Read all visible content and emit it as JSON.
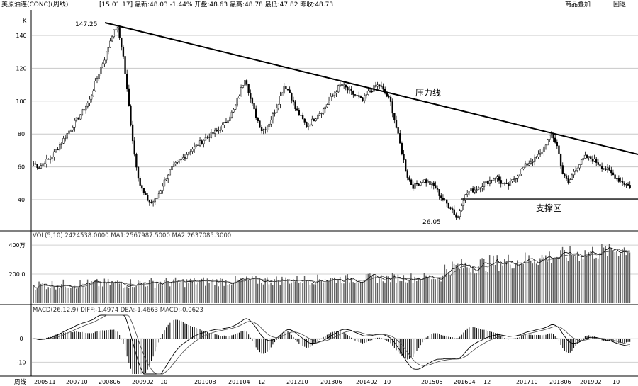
{
  "header": {
    "title": "美原油连(CONC)(周线)",
    "quote": "[15.01.17] 最新:48.03 -1.44% 开盘:48.63 最高:48.78 最低:47.82 昨收:48.73",
    "product_link": "商品叠加",
    "back_link": "回退"
  },
  "chart_data": [
    {
      "type": "candlestick",
      "name": "price",
      "yunit": "K",
      "ylim": [
        40,
        145
      ],
      "yticks": [
        40,
        60,
        80,
        100,
        120,
        140
      ],
      "xlabels": [
        "200511",
        "200710",
        "200806",
        "200902",
        "10",
        "201008",
        "201104",
        "12",
        "201210",
        "201306",
        "201402",
        "10",
        "201505",
        "201604",
        "12",
        "201710",
        "201806",
        "201902",
        "10"
      ],
      "close_series": [
        62,
        60,
        63,
        65,
        70,
        75,
        80,
        85,
        90,
        95,
        100,
        110,
        120,
        128,
        140,
        145.28,
        130,
        100,
        70,
        50,
        42,
        38,
        40,
        48,
        55,
        60,
        63,
        66,
        70,
        72,
        75,
        78,
        80,
        82,
        85,
        90,
        95,
        105,
        115,
        100,
        90,
        82,
        85,
        92,
        100,
        110,
        105,
        95,
        90,
        85,
        88,
        92,
        95,
        100,
        105,
        110,
        108,
        105,
        103,
        100,
        105,
        108,
        110,
        105,
        100,
        85,
        70,
        55,
        48,
        50,
        52,
        50,
        48,
        42,
        38,
        35,
        28.05,
        40,
        45,
        46,
        48,
        50,
        52,
        54,
        50,
        48,
        52,
        56,
        60,
        63,
        65,
        68,
        75,
        80,
        72,
        55,
        50,
        58,
        62,
        66,
        65,
        63,
        60,
        58,
        55,
        52,
        50,
        48
      ],
      "annotations": [
        {
          "label": "147.25",
          "value": 147.25
        },
        {
          "label": "26.05",
          "value": 26.05
        },
        {
          "label": "压力线",
          "kind": "resistance"
        },
        {
          "label": "支撑区",
          "kind": "support",
          "value": 40
        }
      ]
    },
    {
      "type": "bar",
      "name": "VOL",
      "indicator": "VOL(5,10) 2424538.0000 MA1:2567987.5000 MA2:2637085.3000",
      "ylim": [
        0,
        420
      ],
      "yticks": [
        200,
        400
      ],
      "ytick_labels": [
        "200.0",
        "400万"
      ]
    },
    {
      "type": "bar+line",
      "name": "MACD",
      "indicator": "MACD(26,12,9) DIFF:-1.4974 DEA:-1.4663 MACD:-0.0623",
      "ylim": [
        -15,
        10
      ],
      "yticks": [
        0,
        -10
      ],
      "ytick_labels": [
        "0",
        "-10"
      ]
    }
  ],
  "footer": {
    "period_label": "周线"
  },
  "colors": {
    "line": "#000000",
    "grid": "#c0c0c0",
    "background": "#ffffff"
  }
}
